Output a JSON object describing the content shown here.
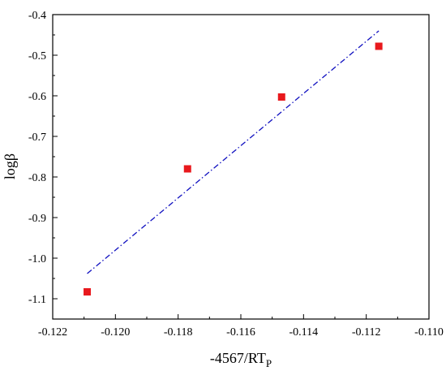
{
  "chart_data": {
    "type": "scatter",
    "title": "",
    "xlabel": "-4567/RT",
    "xlabel_sub": "P",
    "ylabel": "logβ",
    "xlim": [
      -0.122,
      -0.11
    ],
    "ylim": [
      -1.15,
      -0.4
    ],
    "x_ticks": [
      -0.122,
      -0.12,
      -0.118,
      -0.116,
      -0.114,
      -0.112,
      -0.11
    ],
    "x_tick_labels": [
      "-0.122",
      "-0.120",
      "-0.118",
      "-0.116",
      "-0.114",
      "-0.112",
      "-0.110"
    ],
    "y_ticks": [
      -1.1,
      -1.0,
      -0.9,
      -0.8,
      -0.7,
      -0.6,
      -0.5,
      -0.4
    ],
    "y_tick_labels": [
      "-1.1",
      "-1.0",
      "-0.9",
      "-0.8",
      "-0.7",
      "-0.6",
      "-0.5",
      "-0.4"
    ],
    "grid": false,
    "series": [
      {
        "kind": "points",
        "marker": "square",
        "color": "#e8191d",
        "points": [
          {
            "x": -0.1209,
            "y": -1.083
          },
          {
            "x": -0.1177,
            "y": -0.78
          },
          {
            "x": -0.1147,
            "y": -0.603
          },
          {
            "x": -0.1116,
            "y": -0.478
          }
        ]
      },
      {
        "kind": "fit-line",
        "style": "dash-dot",
        "color": "#1010c0",
        "points": [
          {
            "x": -0.1209,
            "y": -1.038
          },
          {
            "x": -0.1116,
            "y": -0.44
          }
        ]
      }
    ]
  }
}
